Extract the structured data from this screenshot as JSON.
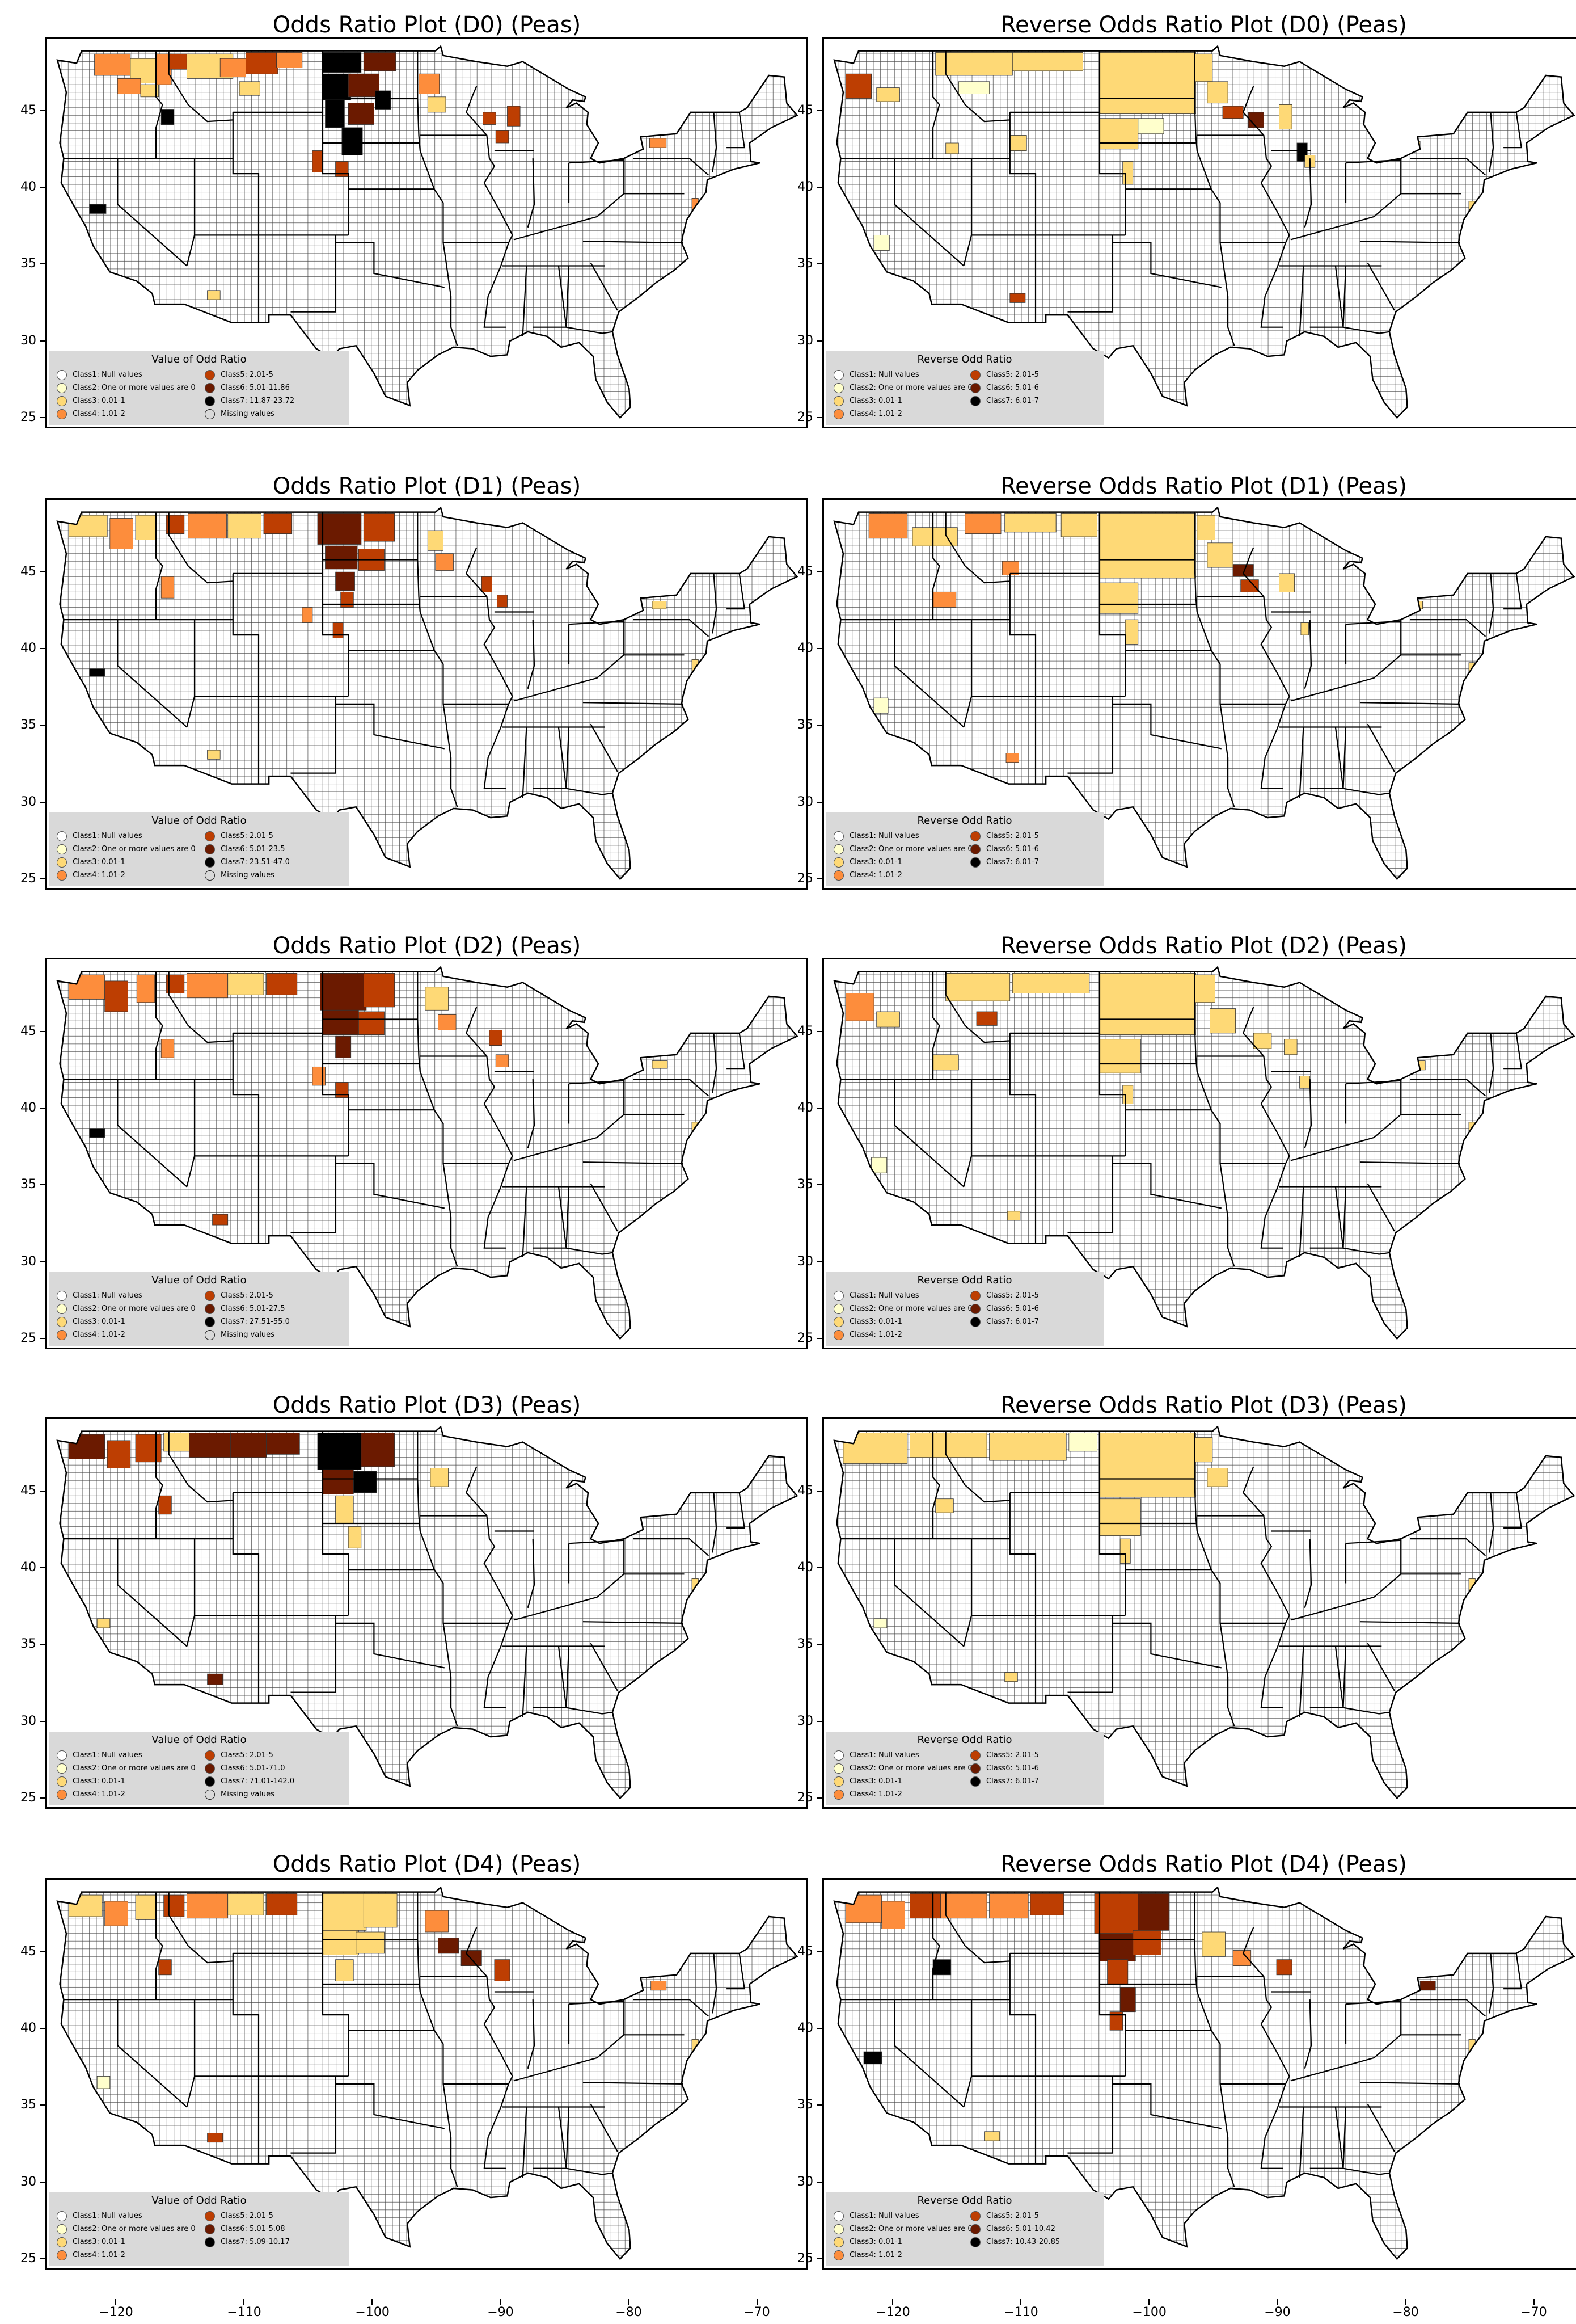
{
  "panels": [
    {
      "title": "Odds Ratio Plot (D0) (Peas)",
      "legend_title": "Value of Odd Ratio",
      "classes": [
        "Class1: Null values",
        "Class2: One or more values are 0",
        "Class3: 0.01-1",
        "Class4: 1.01-2",
        "Class5: 2.01-5",
        "Class6: 5.01-11.86",
        "Class7: 11.87-23.72",
        "Missing values"
      ]
    },
    {
      "title": "Reverse Odds Ratio Plot (D0) (Peas)",
      "legend_title": "Reverse Odd Ratio",
      "classes": [
        "Class1: Null values",
        "Class2: One or more values are 0",
        "Class3: 0.01-1",
        "Class4: 1.01-2",
        "Class5: 2.01-5",
        "Class6: 5.01-6",
        "Class7: 6.01-7"
      ]
    },
    {
      "title": "Odds Ratio Plot (D1) (Peas)",
      "legend_title": "Value of Odd Ratio",
      "classes": [
        "Class1: Null values",
        "Class2: One or more values are 0",
        "Class3: 0.01-1",
        "Class4: 1.01-2",
        "Class5: 2.01-5",
        "Class6: 5.01-23.5",
        "Class7: 23.51-47.0",
        "Missing values"
      ]
    },
    {
      "title": "Reverse Odds Ratio Plot (D1) (Peas)",
      "legend_title": "Reverse Odd Ratio",
      "classes": [
        "Class1: Null values",
        "Class2: One or more values are 0",
        "Class3: 0.01-1",
        "Class4: 1.01-2",
        "Class5: 2.01-5",
        "Class6: 5.01-6",
        "Class7: 6.01-7"
      ]
    },
    {
      "title": "Odds Ratio Plot (D2) (Peas)",
      "legend_title": "Value of Odd Ratio",
      "classes": [
        "Class1: Null values",
        "Class2: One or more values are 0",
        "Class3: 0.01-1",
        "Class4: 1.01-2",
        "Class5: 2.01-5",
        "Class6: 5.01-27.5",
        "Class7: 27.51-55.0",
        "Missing values"
      ]
    },
    {
      "title": "Reverse Odds Ratio Plot (D2) (Peas)",
      "legend_title": "Reverse Odd Ratio",
      "classes": [
        "Class1: Null values",
        "Class2: One or more values are 0",
        "Class3: 0.01-1",
        "Class4: 1.01-2",
        "Class5: 2.01-5",
        "Class6: 5.01-6",
        "Class7: 6.01-7"
      ]
    },
    {
      "title": "Odds Ratio Plot (D3) (Peas)",
      "legend_title": "Value of Odd Ratio",
      "classes": [
        "Class1: Null values",
        "Class2: One or more values are 0",
        "Class3: 0.01-1",
        "Class4: 1.01-2",
        "Class5: 2.01-5",
        "Class6: 5.01-71.0",
        "Class7: 71.01-142.0",
        "Missing values"
      ]
    },
    {
      "title": "Reverse Odds Ratio Plot (D3) (Peas)",
      "legend_title": "Reverse Odd Ratio",
      "classes": [
        "Class1: Null values",
        "Class2: One or more values are 0",
        "Class3: 0.01-1",
        "Class4: 1.01-2",
        "Class5: 2.01-5",
        "Class6: 5.01-6",
        "Class7: 6.01-7"
      ]
    },
    {
      "title": "Odds Ratio Plot (D4) (Peas)",
      "legend_title": "Value of Odd Ratio",
      "classes": [
        "Class1: Null values",
        "Class2: One or more values are 0",
        "Class3: 0.01-1",
        "Class4: 1.01-2",
        "Class5: 2.01-5",
        "Class6: 5.01-5.08",
        "Class7: 5.09-10.17"
      ]
    },
    {
      "title": "Reverse Odds Ratio Plot (D4) (Peas)",
      "legend_title": "Reverse Odd Ratio",
      "classes": [
        "Class1: Null values",
        "Class2: One or more values are 0",
        "Class3: 0.01-1",
        "Class4: 1.01-2",
        "Class5: 2.01-5",
        "Class6: 5.01-10.42",
        "Class7: 10.43-20.85"
      ]
    }
  ],
  "class_colors": [
    "#ffffff",
    "#ffffcc",
    "#fed976",
    "#fd8d3c",
    "#bd3e02",
    "#6b1a00",
    "#000000",
    "#d9d9d9"
  ],
  "lat_ticks": [
    "25",
    "30",
    "35",
    "40",
    "45"
  ],
  "lon_ticks": [
    "−120",
    "−110",
    "−100",
    "−90",
    "−80",
    "−70"
  ]
}
